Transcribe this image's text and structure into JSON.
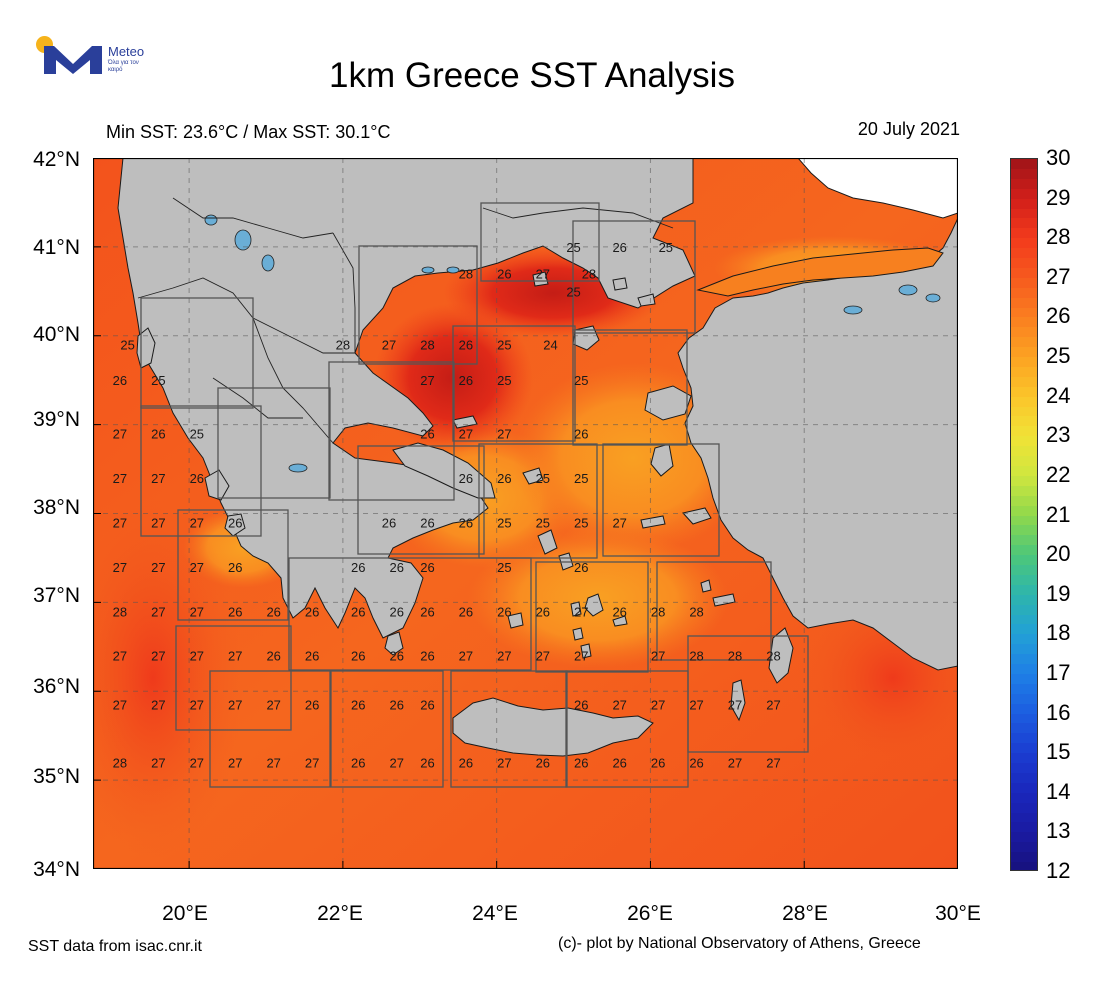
{
  "logo": {
    "name": "Meteo",
    "tagline": "Όλα για τον καιρό"
  },
  "header": {
    "title": "1km Greece SST Analysis",
    "minmax": "Min SST: 23.6°C / Max SST: 30.1°C",
    "date": "20 July 2021"
  },
  "axes": {
    "lat_labels": [
      "42°N",
      "41°N",
      "40°N",
      "39°N",
      "38°N",
      "37°N",
      "36°N",
      "35°N",
      "34°N"
    ],
    "lon_labels": [
      "20°E",
      "22°E",
      "24°E",
      "26°E",
      "28°E",
      "30°E"
    ]
  },
  "colorbar": {
    "labels": [
      "30",
      "29",
      "28",
      "27",
      "26",
      "25",
      "24",
      "23",
      "22",
      "21",
      "20",
      "19",
      "18",
      "17",
      "16",
      "15",
      "14",
      "13",
      "12"
    ],
    "colors": [
      "#9e1318",
      "#d21f1a",
      "#f23a1c",
      "#f75a1e",
      "#fa7e20",
      "#fca322",
      "#fbc52a",
      "#f1e236",
      "#cfe63f",
      "#8fd84c",
      "#4dc77a",
      "#2db5ad",
      "#22a0d6",
      "#1e7fe6",
      "#1c5de0",
      "#1b3dd1",
      "#1a26bb",
      "#1a1aa2",
      "#16117c"
    ]
  },
  "map": {
    "sea_color": "#f5621c",
    "land_color": "#bebebe",
    "lake_color": "#6aaed6",
    "sst_labels": [
      {
        "lon": 25.0,
        "lat": 41.0,
        "v": "25"
      },
      {
        "lon": 25.6,
        "lat": 41.0,
        "v": "26"
      },
      {
        "lon": 26.2,
        "lat": 41.0,
        "v": "25"
      },
      {
        "lon": 25.0,
        "lat": 40.5,
        "v": "25"
      },
      {
        "lon": 23.6,
        "lat": 40.7,
        "v": "28"
      },
      {
        "lon": 24.1,
        "lat": 40.7,
        "v": "26"
      },
      {
        "lon": 24.6,
        "lat": 40.7,
        "v": "27"
      },
      {
        "lon": 25.2,
        "lat": 40.7,
        "v": "28"
      },
      {
        "lon": 19.2,
        "lat": 39.9,
        "v": "25"
      },
      {
        "lon": 22.0,
        "lat": 39.9,
        "v": "28"
      },
      {
        "lon": 22.6,
        "lat": 39.9,
        "v": "27"
      },
      {
        "lon": 23.1,
        "lat": 39.9,
        "v": "28"
      },
      {
        "lon": 23.6,
        "lat": 39.9,
        "v": "26"
      },
      {
        "lon": 24.1,
        "lat": 39.9,
        "v": "25"
      },
      {
        "lon": 24.7,
        "lat": 39.9,
        "v": "24"
      },
      {
        "lon": 19.1,
        "lat": 39.5,
        "v": "26"
      },
      {
        "lon": 19.6,
        "lat": 39.5,
        "v": "25"
      },
      {
        "lon": 23.1,
        "lat": 39.5,
        "v": "27"
      },
      {
        "lon": 23.6,
        "lat": 39.5,
        "v": "26"
      },
      {
        "lon": 24.1,
        "lat": 39.5,
        "v": "25"
      },
      {
        "lon": 25.1,
        "lat": 39.5,
        "v": "25"
      },
      {
        "lon": 19.1,
        "lat": 38.9,
        "v": "27"
      },
      {
        "lon": 19.6,
        "lat": 38.9,
        "v": "26"
      },
      {
        "lon": 20.1,
        "lat": 38.9,
        "v": "25"
      },
      {
        "lon": 23.1,
        "lat": 38.9,
        "v": "26"
      },
      {
        "lon": 23.6,
        "lat": 38.9,
        "v": "27"
      },
      {
        "lon": 24.1,
        "lat": 38.9,
        "v": "27"
      },
      {
        "lon": 25.1,
        "lat": 38.9,
        "v": "26"
      },
      {
        "lon": 19.1,
        "lat": 38.4,
        "v": "27"
      },
      {
        "lon": 19.6,
        "lat": 38.4,
        "v": "27"
      },
      {
        "lon": 20.1,
        "lat": 38.4,
        "v": "26"
      },
      {
        "lon": 23.6,
        "lat": 38.4,
        "v": "26"
      },
      {
        "lon": 24.1,
        "lat": 38.4,
        "v": "26"
      },
      {
        "lon": 24.6,
        "lat": 38.4,
        "v": "25"
      },
      {
        "lon": 25.1,
        "lat": 38.4,
        "v": "25"
      },
      {
        "lon": 19.1,
        "lat": 37.9,
        "v": "27"
      },
      {
        "lon": 19.6,
        "lat": 37.9,
        "v": "27"
      },
      {
        "lon": 20.1,
        "lat": 37.9,
        "v": "27"
      },
      {
        "lon": 20.6,
        "lat": 37.9,
        "v": "26"
      },
      {
        "lon": 22.6,
        "lat": 37.9,
        "v": "26"
      },
      {
        "lon": 23.1,
        "lat": 37.9,
        "v": "26"
      },
      {
        "lon": 23.6,
        "lat": 37.9,
        "v": "26"
      },
      {
        "lon": 24.1,
        "lat": 37.9,
        "v": "25"
      },
      {
        "lon": 24.6,
        "lat": 37.9,
        "v": "25"
      },
      {
        "lon": 25.1,
        "lat": 37.9,
        "v": "25"
      },
      {
        "lon": 25.6,
        "lat": 37.9,
        "v": "27"
      },
      {
        "lon": 19.1,
        "lat": 37.4,
        "v": "27"
      },
      {
        "lon": 19.6,
        "lat": 37.4,
        "v": "27"
      },
      {
        "lon": 20.1,
        "lat": 37.4,
        "v": "27"
      },
      {
        "lon": 20.6,
        "lat": 37.4,
        "v": "26"
      },
      {
        "lon": 22.2,
        "lat": 37.4,
        "v": "26"
      },
      {
        "lon": 22.7,
        "lat": 37.4,
        "v": "26"
      },
      {
        "lon": 23.1,
        "lat": 37.4,
        "v": "26"
      },
      {
        "lon": 24.1,
        "lat": 37.4,
        "v": "25"
      },
      {
        "lon": 25.1,
        "lat": 37.4,
        "v": "26"
      },
      {
        "lon": 19.1,
        "lat": 36.9,
        "v": "28"
      },
      {
        "lon": 19.6,
        "lat": 36.9,
        "v": "27"
      },
      {
        "lon": 20.1,
        "lat": 36.9,
        "v": "27"
      },
      {
        "lon": 20.6,
        "lat": 36.9,
        "v": "26"
      },
      {
        "lon": 21.1,
        "lat": 36.9,
        "v": "26"
      },
      {
        "lon": 21.6,
        "lat": 36.9,
        "v": "26"
      },
      {
        "lon": 22.2,
        "lat": 36.9,
        "v": "26"
      },
      {
        "lon": 22.7,
        "lat": 36.9,
        "v": "26"
      },
      {
        "lon": 23.1,
        "lat": 36.9,
        "v": "26"
      },
      {
        "lon": 23.6,
        "lat": 36.9,
        "v": "26"
      },
      {
        "lon": 24.1,
        "lat": 36.9,
        "v": "26"
      },
      {
        "lon": 24.6,
        "lat": 36.9,
        "v": "26"
      },
      {
        "lon": 25.1,
        "lat": 36.9,
        "v": "27"
      },
      {
        "lon": 25.6,
        "lat": 36.9,
        "v": "26"
      },
      {
        "lon": 26.1,
        "lat": 36.9,
        "v": "28"
      },
      {
        "lon": 26.6,
        "lat": 36.9,
        "v": "28"
      },
      {
        "lon": 19.1,
        "lat": 36.4,
        "v": "27"
      },
      {
        "lon": 19.6,
        "lat": 36.4,
        "v": "27"
      },
      {
        "lon": 20.1,
        "lat": 36.4,
        "v": "27"
      },
      {
        "lon": 20.6,
        "lat": 36.4,
        "v": "27"
      },
      {
        "lon": 21.1,
        "lat": 36.4,
        "v": "26"
      },
      {
        "lon": 21.6,
        "lat": 36.4,
        "v": "26"
      },
      {
        "lon": 22.2,
        "lat": 36.4,
        "v": "26"
      },
      {
        "lon": 22.7,
        "lat": 36.4,
        "v": "26"
      },
      {
        "lon": 23.1,
        "lat": 36.4,
        "v": "26"
      },
      {
        "lon": 23.6,
        "lat": 36.4,
        "v": "27"
      },
      {
        "lon": 24.1,
        "lat": 36.4,
        "v": "27"
      },
      {
        "lon": 24.6,
        "lat": 36.4,
        "v": "27"
      },
      {
        "lon": 25.1,
        "lat": 36.4,
        "v": "27"
      },
      {
        "lon": 26.1,
        "lat": 36.4,
        "v": "27"
      },
      {
        "lon": 26.6,
        "lat": 36.4,
        "v": "28"
      },
      {
        "lon": 27.1,
        "lat": 36.4,
        "v": "28"
      },
      {
        "lon": 27.6,
        "lat": 36.4,
        "v": "28"
      },
      {
        "lon": 19.1,
        "lat": 35.85,
        "v": "27"
      },
      {
        "lon": 19.6,
        "lat": 35.85,
        "v": "27"
      },
      {
        "lon": 20.1,
        "lat": 35.85,
        "v": "27"
      },
      {
        "lon": 20.6,
        "lat": 35.85,
        "v": "27"
      },
      {
        "lon": 21.1,
        "lat": 35.85,
        "v": "27"
      },
      {
        "lon": 21.6,
        "lat": 35.85,
        "v": "26"
      },
      {
        "lon": 22.2,
        "lat": 35.85,
        "v": "26"
      },
      {
        "lon": 22.7,
        "lat": 35.85,
        "v": "26"
      },
      {
        "lon": 23.1,
        "lat": 35.85,
        "v": "26"
      },
      {
        "lon": 25.1,
        "lat": 35.85,
        "v": "26"
      },
      {
        "lon": 25.6,
        "lat": 35.85,
        "v": "27"
      },
      {
        "lon": 26.1,
        "lat": 35.85,
        "v": "27"
      },
      {
        "lon": 26.6,
        "lat": 35.85,
        "v": "27"
      },
      {
        "lon": 27.1,
        "lat": 35.85,
        "v": "27"
      },
      {
        "lon": 27.6,
        "lat": 35.85,
        "v": "27"
      },
      {
        "lon": 19.1,
        "lat": 35.2,
        "v": "28"
      },
      {
        "lon": 19.6,
        "lat": 35.2,
        "v": "27"
      },
      {
        "lon": 20.1,
        "lat": 35.2,
        "v": "27"
      },
      {
        "lon": 20.6,
        "lat": 35.2,
        "v": "27"
      },
      {
        "lon": 21.1,
        "lat": 35.2,
        "v": "27"
      },
      {
        "lon": 21.6,
        "lat": 35.2,
        "v": "27"
      },
      {
        "lon": 22.2,
        "lat": 35.2,
        "v": "26"
      },
      {
        "lon": 22.7,
        "lat": 35.2,
        "v": "27"
      },
      {
        "lon": 23.1,
        "lat": 35.2,
        "v": "26"
      },
      {
        "lon": 23.6,
        "lat": 35.2,
        "v": "26"
      },
      {
        "lon": 24.1,
        "lat": 35.2,
        "v": "27"
      },
      {
        "lon": 24.6,
        "lat": 35.2,
        "v": "26"
      },
      {
        "lon": 25.1,
        "lat": 35.2,
        "v": "26"
      },
      {
        "lon": 25.6,
        "lat": 35.2,
        "v": "26"
      },
      {
        "lon": 26.1,
        "lat": 35.2,
        "v": "26"
      },
      {
        "lon": 26.6,
        "lat": 35.2,
        "v": "26"
      },
      {
        "lon": 27.1,
        "lat": 35.2,
        "v": "27"
      },
      {
        "lon": 27.6,
        "lat": 35.2,
        "v": "27"
      }
    ]
  },
  "footer": {
    "source": "SST data from isac.cnr.it",
    "credit": "(c)- plot by National Observatory of Athens, Greece"
  }
}
